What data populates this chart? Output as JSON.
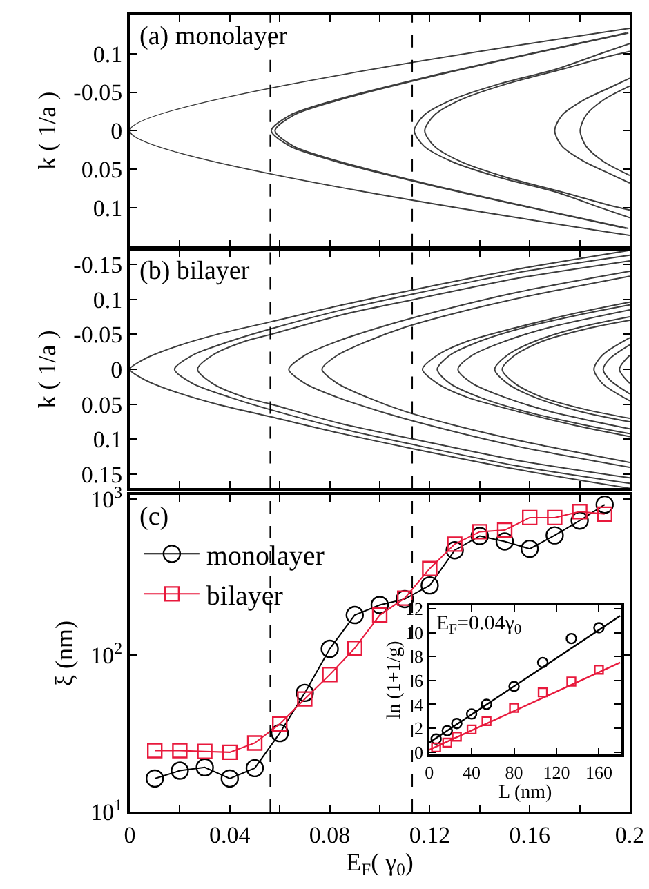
{
  "chart_data": [
    {
      "type": "line",
      "title": "(a) monolayer",
      "ylabel": "k ( 1/a )",
      "tick_labels": "y",
      "xlim": [
        0,
        0.2
      ],
      "ylim": [
        0.15,
        -0.15
      ],
      "xticks": [
        {
          "value": 0,
          "label": null
        },
        {
          "value": 0.02,
          "label": null
        },
        {
          "value": 0.04,
          "label": null
        },
        {
          "value": 0.06,
          "label": null
        },
        {
          "value": 0.08,
          "label": null
        },
        {
          "value": 0.1,
          "label": null
        },
        {
          "value": 0.12,
          "label": null
        },
        {
          "value": 0.14,
          "label": null
        },
        {
          "value": 0.16,
          "label": null
        },
        {
          "value": 0.18,
          "label": null
        },
        {
          "value": 0.2,
          "label": null
        }
      ],
      "yticks": [
        {
          "value": -0.1,
          "label": "0.1"
        },
        -0.05,
        0,
        0.05,
        0.1
      ],
      "ref_lines": [
        {
          "axis": "x",
          "value": 0.0562,
          "line_style": "dashed",
          "color": "#000000"
        },
        {
          "axis": "x",
          "value": 0.113,
          "line_style": "dashed",
          "color": "#000000"
        }
      ],
      "series": [
        {
          "color": "#3c3c3c",
          "x": [
            0.2,
            0,
            0.2
          ],
          "values": [
            -0.133,
            0,
            0.136
          ]
        },
        {
          "color": "#3c3c3c",
          "x": [
            0.1987,
            0.1603,
            0.1192,
            0.0825,
            0.064,
            0.0566,
            0.064,
            0.0825,
            0.1192,
            0.1603,
            0.1987
          ],
          "values": [
            -0.127,
            -0.1,
            -0.07,
            -0.04,
            -0.02,
            0,
            0.02,
            0.04,
            0.07,
            0.1,
            0.127
          ]
        },
        {
          "color": "#3c3c3c",
          "x": [
            0.1995,
            0.161,
            0.1202,
            0.0839,
            0.0654,
            0.0581,
            0.0654,
            0.0839,
            0.1202,
            0.161,
            0.1995
          ],
          "values": [
            -0.127,
            -0.1,
            -0.07,
            -0.04,
            -0.02,
            0,
            0.02,
            0.04,
            0.07,
            0.1,
            0.127
          ]
        },
        {
          "color": "#3c3c3c",
          "x": [
            0.2,
            0.1883,
            0.1707,
            0.1471,
            0.1288,
            0.1177,
            0.1138,
            0.1177,
            0.1288,
            0.1471,
            0.1707,
            0.1883,
            0.2
          ],
          "values": [
            -0.113,
            -0.1,
            -0.08,
            -0.06,
            -0.04,
            -0.02,
            0,
            0.02,
            0.04,
            0.06,
            0.08,
            0.1,
            0.113
          ]
        },
        {
          "color": "#3c3c3c",
          "x": [
            0.2,
            0.1909,
            0.1732,
            0.15,
            0.1323,
            0.1218,
            0.118,
            0.1218,
            0.1323,
            0.15,
            0.1732,
            0.1909,
            0.2
          ],
          "values": [
            -0.103,
            -0.096,
            -0.08,
            -0.06,
            -0.04,
            -0.02,
            0,
            0.02,
            0.04,
            0.06,
            0.08,
            0.096,
            0.103
          ]
        },
        {
          "color": "#3c3c3c",
          "x": [
            0.2,
            0.1914,
            0.1817,
            0.1729,
            0.17,
            0.1729,
            0.1817,
            0.1914,
            0.2
          ],
          "values": [
            -0.068,
            -0.055,
            -0.04,
            -0.02,
            0,
            0.02,
            0.04,
            0.055,
            0.068
          ]
        },
        {
          "color": "#3c3c3c",
          "x": [
            0.2,
            0.1895,
            0.1825,
            0.1802,
            0.1825,
            0.1895,
            0.2
          ],
          "values": [
            -0.058,
            -0.04,
            -0.02,
            0,
            0.02,
            0.04,
            0.058
          ]
        }
      ]
    },
    {
      "type": "line",
      "title": "(b) bilayer",
      "ylabel": "k ( 1/a )",
      "tick_labels": "y",
      "xlim": [
        0,
        0.2
      ],
      "ylim": [
        0.17,
        -0.17
      ],
      "xticks": [
        {
          "value": 0,
          "label": null
        },
        {
          "value": 0.02,
          "label": null
        },
        {
          "value": 0.04,
          "label": null
        },
        {
          "value": 0.06,
          "label": null
        },
        {
          "value": 0.08,
          "label": null
        },
        {
          "value": 0.1,
          "label": null
        },
        {
          "value": 0.12,
          "label": null
        },
        {
          "value": 0.14,
          "label": null
        },
        {
          "value": 0.16,
          "label": null
        },
        {
          "value": 0.18,
          "label": null
        },
        {
          "value": 0.2,
          "label": null
        }
      ],
      "yticks": [
        -0.15,
        {
          "value": -0.1,
          "label": "0.1"
        },
        -0.05,
        0,
        0.05,
        0.1,
        0.15
      ],
      "ref_lines": [
        {
          "axis": "x",
          "value": 0.0562,
          "line_style": "dashed",
          "color": "#000000"
        },
        {
          "axis": "x",
          "value": 0.113,
          "line_style": "dashed",
          "color": "#000000"
        }
      ],
      "series": [
        {
          "color": "#3c3c3c",
          "x": [
            0.2,
            0.155,
            0.114,
            0.085,
            0.0566,
            0.035,
            0.018,
            0.006,
            0,
            0.006,
            0.018,
            0.035,
            0.0566,
            0.085,
            0.114,
            0.155,
            0.2
          ],
          "values": [
            -0.17,
            -0.143,
            -0.114,
            -0.092,
            -0.068,
            -0.05,
            -0.032,
            -0.015,
            0,
            0.015,
            0.032,
            0.05,
            0.068,
            0.092,
            0.114,
            0.143,
            0.17
          ]
        },
        {
          "color": "#3c3c3c",
          "x": [
            0.2,
            0.155,
            0.114,
            0.085,
            0.0566,
            0.04,
            0.025,
            0.0179,
            0.025,
            0.04,
            0.0566,
            0.085,
            0.114,
            0.155,
            0.2
          ],
          "values": [
            -0.163,
            -0.138,
            -0.108,
            -0.085,
            -0.058,
            -0.04,
            -0.02,
            0,
            0.02,
            0.04,
            0.058,
            0.085,
            0.108,
            0.138,
            0.163
          ]
        },
        {
          "color": "#3c3c3c",
          "x": [
            0.2,
            0.155,
            0.114,
            0.085,
            0.0566,
            0.046,
            0.033,
            0.0271,
            0.033,
            0.046,
            0.0566,
            0.085,
            0.114,
            0.155,
            0.2
          ],
          "values": [
            -0.155,
            -0.13,
            -0.1,
            -0.078,
            -0.05,
            -0.04,
            -0.02,
            0,
            0.02,
            0.04,
            0.05,
            0.078,
            0.1,
            0.13,
            0.155
          ]
        },
        {
          "color": "#3c3c3c",
          "x": [
            0.2,
            0.155,
            0.12,
            0.1,
            0.083,
            0.07,
            0.0636,
            0.07,
            0.083,
            0.1,
            0.12,
            0.155,
            0.2
          ],
          "values": [
            -0.14,
            -0.11,
            -0.08,
            -0.06,
            -0.04,
            -0.02,
            0,
            0.02,
            0.04,
            0.06,
            0.08,
            0.11,
            0.14
          ]
        },
        {
          "color": "#3c3c3c",
          "x": [
            0.2,
            0.16,
            0.13,
            0.11,
            0.095,
            0.083,
            0.0769,
            0.083,
            0.095,
            0.11,
            0.13,
            0.16,
            0.2
          ],
          "values": [
            -0.133,
            -0.105,
            -0.08,
            -0.06,
            -0.04,
            -0.02,
            0,
            0.02,
            0.04,
            0.06,
            0.08,
            0.105,
            0.133
          ]
        },
        {
          "color": "#3c3c3c",
          "x": [
            0.2,
            0.178,
            0.155,
            0.135,
            0.123,
            0.1171,
            0.123,
            0.135,
            0.155,
            0.178,
            0.2
          ],
          "values": [
            -0.096,
            -0.08,
            -0.06,
            -0.04,
            -0.02,
            0,
            0.02,
            0.04,
            0.06,
            0.08,
            0.096
          ]
        },
        {
          "color": "#3c3c3c",
          "x": [
            0.2,
            0.18,
            0.158,
            0.14,
            0.128,
            0.123,
            0.128,
            0.14,
            0.158,
            0.18,
            0.2
          ],
          "values": [
            -0.092,
            -0.078,
            -0.06,
            -0.04,
            -0.02,
            0,
            0.02,
            0.04,
            0.06,
            0.078,
            0.092
          ]
        },
        {
          "color": "#3c3c3c",
          "x": [
            0.2,
            0.168,
            0.15,
            0.137,
            0.1313,
            0.137,
            0.15,
            0.168,
            0.2
          ],
          "values": [
            -0.085,
            -0.06,
            -0.04,
            -0.02,
            0,
            0.02,
            0.04,
            0.06,
            0.085
          ]
        },
        {
          "color": "#3c3c3c",
          "x": [
            0.2,
            0.18,
            0.162,
            0.151,
            0.146,
            0.151,
            0.162,
            0.18,
            0.2
          ],
          "values": [
            -0.075,
            -0.06,
            -0.04,
            -0.02,
            0,
            0.02,
            0.04,
            0.06,
            0.075
          ]
        },
        {
          "color": "#3c3c3c",
          "x": [
            0.2,
            0.183,
            0.165,
            0.154,
            0.149,
            0.154,
            0.165,
            0.183,
            0.2
          ],
          "values": [
            -0.07,
            -0.058,
            -0.04,
            -0.02,
            0,
            0.02,
            0.04,
            0.058,
            0.07
          ]
        },
        {
          "color": "#3c3c3c",
          "x": [
            0.2,
            0.189,
            0.1857,
            0.189,
            0.2
          ],
          "values": [
            -0.045,
            -0.02,
            0,
            0.02,
            0.045
          ]
        },
        {
          "color": "#3c3c3c",
          "x": [
            0.2,
            0.192,
            0.1894,
            0.192,
            0.2
          ],
          "values": [
            -0.035,
            -0.015,
            0,
            0.015,
            0.035
          ]
        },
        {
          "color": "#3c3c3c",
          "x": [
            0.2,
            0.1959,
            0.2
          ],
          "values": [
            -0.02,
            0,
            0.02
          ]
        }
      ]
    },
    {
      "type": "line",
      "title": "(c)",
      "xlabel": "E$_{F}$( γ$_{0}$)",
      "ylabel": "ξ (nm)",
      "log": "y",
      "legend": "top left",
      "xlim": [
        0,
        0.2
      ],
      "ylim": [
        10,
        1060
      ],
      "xticks": [
        0,
        {
          "value": 0.02,
          "label": null
        },
        0.04,
        {
          "value": 0.06,
          "label": null
        },
        0.08,
        {
          "value": 0.1,
          "label": null
        },
        0.12,
        {
          "value": 0.14,
          "label": null
        },
        0.16,
        {
          "value": 0.18,
          "label": null
        },
        0.2
      ],
      "yticks": [
        {
          "value": 10,
          "label": "10$^{1}$"
        },
        {
          "value": 100,
          "label": "10$^{2}$"
        },
        {
          "value": 1000,
          "label": "10$^{3}$"
        }
      ],
      "ref_lines": [
        {
          "axis": "x",
          "value": 0.0562,
          "line_style": "dashed",
          "color": "#000000"
        },
        {
          "axis": "x",
          "value": 0.113,
          "line_style": "dashed",
          "color": "#000000"
        }
      ],
      "x": [
        0.01,
        0.02,
        0.03,
        0.04,
        0.05,
        0.06,
        0.07,
        0.08,
        0.09,
        0.1,
        0.11,
        0.12,
        0.13,
        0.14,
        0.15,
        0.16,
        0.17,
        0.18,
        0.19
      ],
      "series": [
        {
          "name": "monolayer",
          "color": "#000000",
          "marker": "circle",
          "values": [
            16.3,
            18.3,
            19.2,
            16.3,
            19,
            31.8,
            57.5,
            110,
            181,
            210,
            229,
            280,
            470,
            580,
            535,
            480,
            585,
            727,
            920
          ]
        },
        {
          "name": "bilayer",
          "color": "#e8193c",
          "marker": "square",
          "values": [
            24.6,
            24.6,
            24.3,
            24,
            27.5,
            36.4,
            52.6,
            75.3,
            111,
            181,
            232,
            359,
            514,
            617,
            632,
            760,
            760,
            830,
            800
          ]
        }
      ]
    },
    {
      "type": "scatter",
      "xlabel": "L (nm)",
      "ylabel": "ln (1+1/g)",
      "annotations": [
        "E$_{F}$=0.04γ$_{0}$"
      ],
      "xlim": [
        0,
        181
      ],
      "ylim": [
        -0.2,
        12.3
      ],
      "xticks": [
        0,
        40,
        80,
        120,
        160
      ],
      "yticks": [
        0,
        2,
        4,
        6,
        8,
        10,
        12
      ],
      "series": [
        {
          "color": "#000000",
          "marker": "circle",
          "x": [
            6.5,
            17,
            26,
            40,
            54,
            80,
            107,
            134,
            160
          ],
          "values": [
            1.1,
            1.8,
            2.4,
            3.2,
            4.0,
            5.5,
            7.5,
            9.5,
            10.4
          ]
        },
        {
          "color": "#e8193c",
          "marker": "square",
          "x": [
            6.5,
            17,
            26,
            40,
            54,
            80,
            107,
            134,
            160
          ],
          "values": [
            0.4,
            0.8,
            1.3,
            1.9,
            2.6,
            3.7,
            5.0,
            5.9,
            6.9
          ]
        },
        {
          "type": "line",
          "color": "#000000",
          "marker": "none",
          "x": [
            0,
            180
          ],
          "values": [
            0.8,
            11.4
          ]
        },
        {
          "type": "line",
          "color": "#e8193c",
          "marker": "none",
          "x": [
            0,
            180
          ],
          "values": [
            0.2,
            7.5
          ]
        }
      ]
    }
  ]
}
